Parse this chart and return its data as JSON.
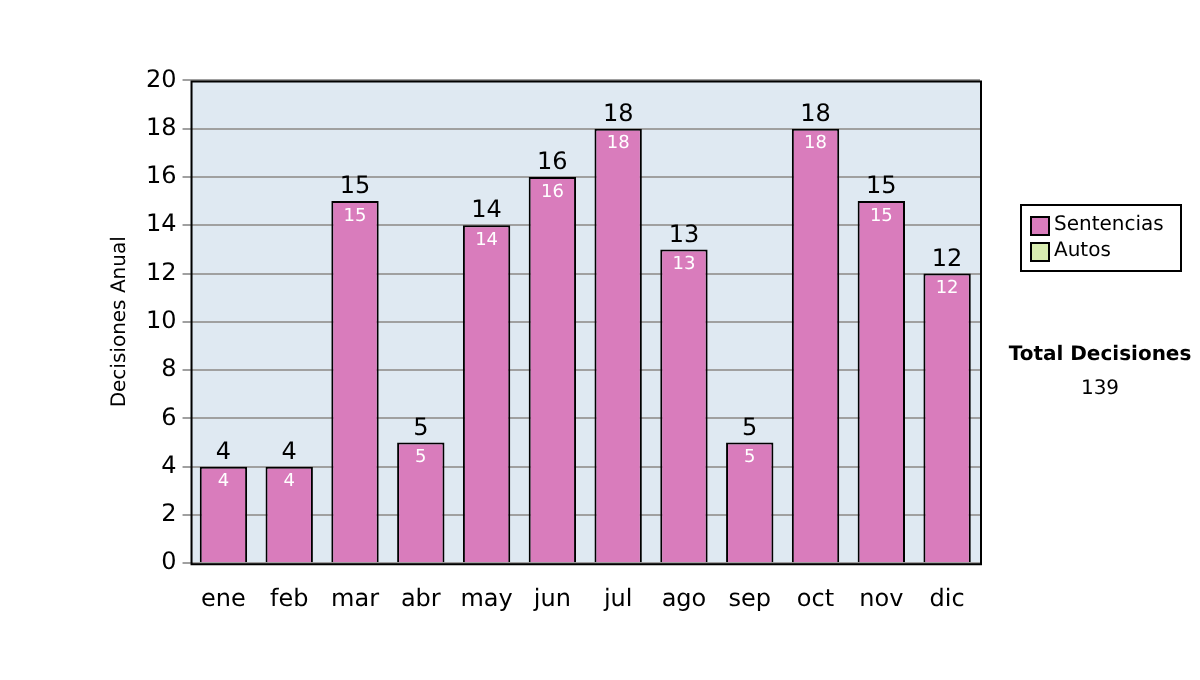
{
  "chart_data": {
    "type": "bar",
    "ylabel": "Decisiones Anual",
    "categories": [
      "ene",
      "feb",
      "mar",
      "abr",
      "may",
      "jun",
      "jul",
      "ago",
      "sep",
      "oct",
      "nov",
      "dic"
    ],
    "series": [
      {
        "name": "Sentencias",
        "color": "#d97cbc",
        "values": [
          4,
          4,
          15,
          5,
          14,
          16,
          18,
          13,
          5,
          18,
          15,
          12
        ],
        "value_labels": [
          "4",
          "4",
          "15",
          "5",
          "14",
          "16",
          "18",
          "13",
          "5",
          "18",
          "15",
          "12"
        ]
      },
      {
        "name": "Autos",
        "color": "#d8ecb0",
        "values": [
          0,
          0,
          0,
          0,
          0,
          0,
          0,
          0,
          0,
          0,
          0,
          0
        ]
      }
    ],
    "stacked": true,
    "totals": [
      "4",
      "4",
      "15",
      "5",
      "14",
      "16",
      "18",
      "13",
      "5",
      "18",
      "15",
      "12"
    ],
    "ylim": [
      0,
      20
    ],
    "yticks": [
      0,
      2,
      4,
      6,
      8,
      10,
      12,
      14,
      16,
      18,
      20
    ],
    "grid": "y",
    "legend": "right",
    "annotations": [
      "Total Decisiones",
      "139"
    ]
  }
}
